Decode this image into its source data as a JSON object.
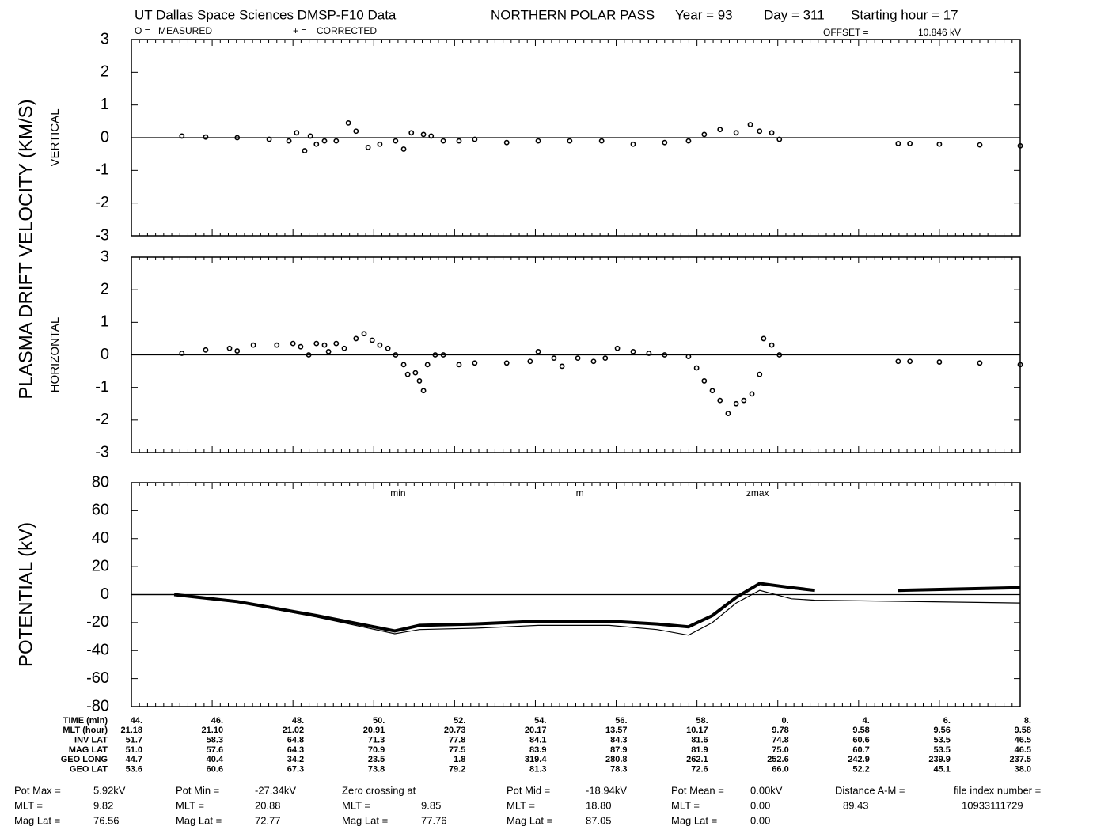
{
  "header": {
    "title": "UT Dallas Space Sciences   DMSP-F10 Data",
    "pass": "NORTHERN POLAR PASS",
    "year": "Year = 93",
    "day": "Day = 311",
    "hour": "Starting hour = 17",
    "offset_label": "OFFSET =",
    "offset": "10.846 kV",
    "ylabel": "PLASMA DRIFT VELOCITY (KM/S)"
  },
  "chart_data": [
    {
      "type": "scatter",
      "ylabel": "VERTICAL",
      "xlim": [
        44,
        66
      ],
      "ylim": [
        -3,
        3
      ],
      "yticks": [
        -3,
        -2,
        -1,
        0,
        1,
        2,
        3
      ],
      "series": [
        {
          "name": "MEASURED",
          "color": "#000000",
          "x": [
            45.25,
            45.84,
            46.62,
            47.41,
            47.9,
            48.09,
            48.29,
            48.43,
            48.58,
            48.78,
            49.07,
            49.37,
            49.56,
            49.86,
            50.15,
            50.54,
            50.74,
            50.93,
            51.23,
            51.42,
            51.72,
            52.11,
            52.5,
            53.29,
            54.07,
            54.85,
            55.64,
            56.42,
            57.2,
            57.79,
            58.18,
            58.57,
            58.97,
            59.32,
            59.55,
            59.85,
            60.04
          ],
          "values": [
            0.05,
            0.02,
            0.0,
            -0.05,
            -0.1,
            0.15,
            -0.4,
            0.05,
            -0.2,
            -0.1,
            -0.1,
            0.45,
            0.2,
            -0.3,
            -0.2,
            -0.1,
            -0.35,
            0.15,
            0.1,
            0.05,
            -0.1,
            -0.1,
            -0.05,
            -0.15,
            -0.1,
            -0.1,
            -0.1,
            -0.2,
            -0.15,
            -0.1,
            0.1,
            0.25,
            0.15,
            0.4,
            0.2,
            0.15,
            -0.05
          ]
        },
        {
          "name": "CORRECTED",
          "color": "#000000",
          "x": [
            62.98,
            63.27,
            64.0,
            65.0,
            66.0
          ],
          "values": [
            -0.18,
            -0.18,
            -0.2,
            -0.22,
            -0.25
          ]
        }
      ]
    },
    {
      "type": "scatter",
      "ylabel": "HORIZONTAL",
      "xlim": [
        44,
        66
      ],
      "ylim": [
        -3,
        3
      ],
      "yticks": [
        -3,
        -2,
        -1,
        0,
        1,
        2,
        3
      ],
      "series": [
        {
          "name": "MEASURED",
          "color": "#000000",
          "x": [
            45.25,
            45.84,
            46.43,
            46.62,
            47.02,
            47.6,
            48.0,
            48.19,
            48.39,
            48.58,
            48.78,
            48.88,
            49.07,
            49.27,
            49.56,
            49.76,
            49.96,
            50.15,
            50.35,
            50.54,
            50.74,
            50.84,
            51.03,
            51.13,
            51.23,
            51.33,
            51.52,
            51.72,
            52.11,
            52.5,
            53.29,
            53.87,
            54.07,
            54.46,
            54.66,
            55.05,
            55.44,
            55.73,
            56.03,
            56.42,
            56.81,
            57.2,
            57.79,
            57.99,
            58.18,
            58.38,
            58.57,
            58.77,
            58.97,
            59.16,
            59.36,
            59.55,
            59.65,
            59.85,
            60.04
          ],
          "values": [
            0.05,
            0.15,
            0.2,
            0.12,
            0.3,
            0.3,
            0.35,
            0.25,
            0.0,
            0.35,
            0.3,
            0.1,
            0.35,
            0.2,
            0.5,
            0.65,
            0.45,
            0.3,
            0.2,
            0.0,
            -0.3,
            -0.6,
            -0.55,
            -0.8,
            -1.1,
            -0.3,
            0.0,
            0.0,
            -0.3,
            -0.25,
            -0.25,
            -0.2,
            0.1,
            -0.1,
            -0.35,
            -0.1,
            -0.2,
            -0.1,
            0.2,
            0.1,
            0.05,
            0.0,
            -0.05,
            -0.4,
            -0.8,
            -1.1,
            -1.4,
            -1.8,
            -1.5,
            -1.4,
            -1.2,
            -0.6,
            0.5,
            0.3,
            0.0
          ]
        },
        {
          "name": "CORRECTED",
          "color": "#000000",
          "x": [
            62.98,
            63.27,
            64.0,
            65.0,
            66.0
          ],
          "values": [
            -0.2,
            -0.2,
            -0.22,
            -0.25,
            -0.3
          ]
        }
      ]
    },
    {
      "type": "line",
      "ylabel": "POTENTIAL (kV)",
      "xlim": [
        44,
        66
      ],
      "ylim": [
        -80,
        80
      ],
      "yticks": [
        -80,
        -60,
        -40,
        -20,
        0,
        20,
        40,
        60,
        80
      ],
      "annotations": [
        {
          "text": "min",
          "x": 50.6
        },
        {
          "text": "m",
          "x": 55.1
        },
        {
          "text": "zmax",
          "x": 59.5
        }
      ],
      "series": [
        {
          "name": "MEASURED",
          "color": "#000000",
          "x": [
            45.06,
            46.62,
            48.58,
            50.52,
            51.13,
            52.5,
            54.07,
            55.83,
            57.01,
            57.79,
            58.38,
            58.97,
            59.55,
            60.34,
            60.92,
            62.0,
            62.98,
            66.0
          ],
          "values": [
            0,
            -5,
            -15,
            -26,
            -22,
            -21,
            -19,
            -19,
            -21,
            -23,
            -15,
            -2,
            8,
            5,
            3,
            null,
            3,
            5
          ]
        },
        {
          "name": "CORRECTED",
          "color": "#000000",
          "x": [
            44,
            45.06,
            46.62,
            48.58,
            50.52,
            51.13,
            52.5,
            54.07,
            55.83,
            57.01,
            57.79,
            58.38,
            58.97,
            59.55,
            60.34,
            60.92,
            66.0
          ],
          "values": [
            0,
            0,
            -5.5,
            -16,
            -28,
            -25,
            -24,
            -22,
            -22,
            -25,
            -29,
            -20,
            -6,
            3,
            -3,
            -4,
            -6
          ]
        }
      ]
    }
  ],
  "ephemeris": {
    "row_labels": [
      "TIME (min)",
      "MLT (hour)",
      "INV LAT",
      "MAG LAT",
      "GEO LONG",
      "GEO LAT"
    ],
    "columns": [
      [
        "44.",
        "21.18",
        "51.7",
        "51.0",
        "44.7",
        "53.6"
      ],
      [
        "46.",
        "21.10",
        "58.3",
        "57.6",
        "40.4",
        "60.6"
      ],
      [
        "48.",
        "21.02",
        "64.8",
        "64.3",
        "34.2",
        "67.3"
      ],
      [
        "50.",
        "20.91",
        "71.3",
        "70.9",
        "23.5",
        "73.8"
      ],
      [
        "52.",
        "20.73",
        "77.8",
        "77.5",
        "1.8",
        "79.2"
      ],
      [
        "54.",
        "20.17",
        "84.1",
        "83.9",
        "319.4",
        "81.3"
      ],
      [
        "56.",
        "13.57",
        "84.3",
        "87.9",
        "280.8",
        "78.3"
      ],
      [
        "58.",
        "10.17",
        "81.6",
        "81.9",
        "262.1",
        "72.6"
      ],
      [
        "0.",
        "9.78",
        "74.8",
        "75.0",
        "252.6",
        "66.0"
      ],
      [
        "4.",
        "9.58",
        "60.6",
        "60.7",
        "242.9",
        "52.2"
      ],
      [
        "6.",
        "9.56",
        "53.5",
        "53.5",
        "239.9",
        "45.1"
      ],
      [
        "8.",
        "9.58",
        "46.5",
        "46.5",
        "237.5",
        "38.0"
      ]
    ]
  },
  "stats": [
    [
      [
        "Pot Max =",
        "5.92kV"
      ],
      [
        "MLT =",
        "9.82"
      ],
      [
        "Mag Lat =",
        "76.56"
      ]
    ],
    [
      [
        "Pot Min =",
        "-27.34kV"
      ],
      [
        "MLT =",
        "20.88"
      ],
      [
        "Mag Lat =",
        "72.77"
      ]
    ],
    [
      [
        "Zero crossing at"
      ],
      [
        "MLT =",
        "9.85"
      ],
      [
        "Mag Lat =",
        "77.76"
      ]
    ],
    [
      [
        "Pot Mid =",
        "-18.94kV"
      ],
      [
        "MLT =",
        "18.80"
      ],
      [
        "Mag Lat =",
        "87.05"
      ]
    ],
    [
      [
        "Pot Mean =",
        "0.00kV"
      ],
      [
        "MLT =",
        "0.00"
      ],
      [
        "Mag Lat =",
        "0.00"
      ]
    ],
    [
      [
        "Distance A-M ="
      ],
      [
        "89.43"
      ]
    ],
    [
      [
        "file index number ="
      ],
      [
        "10933111729"
      ]
    ]
  ]
}
